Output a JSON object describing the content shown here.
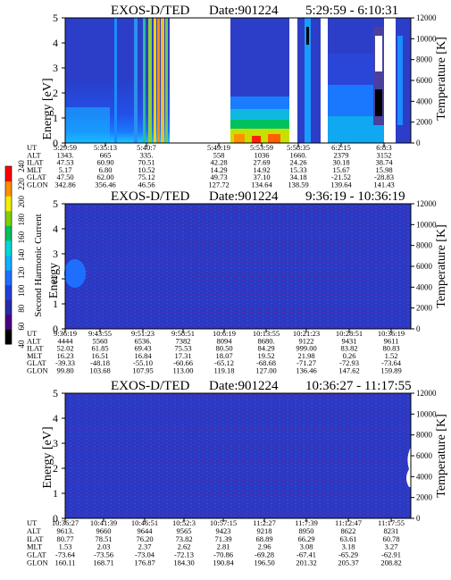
{
  "chart_data": [
    {
      "type": "heatmap",
      "title": "EXOS-D/TED",
      "date_label": "Date:901224",
      "time_range": "5:29:59 - 6:10:31",
      "ylabel": "Energy [eV]",
      "y2label": "Temperature [K]",
      "ylim": [
        0,
        5
      ],
      "y2lim": [
        0,
        12000
      ],
      "yticks": [
        "0",
        "1",
        "2",
        "3",
        "4",
        "5"
      ],
      "y2ticks": [
        "0",
        "2000",
        "4000",
        "6000",
        "8000",
        "10000",
        "12000"
      ],
      "row_labels": [
        "UT",
        "ALT",
        "ILAT",
        "MLT",
        "GLAT",
        "GLON"
      ],
      "columns": [
        [
          "5:29:59",
          "1343.",
          "47.53",
          "5.17",
          "47.50",
          "342.86"
        ],
        [
          "5:35:13",
          "665",
          "60.90",
          "6.80",
          "62.00",
          "356.46"
        ],
        [
          "5:40:7",
          "335.",
          "70.51",
          "10.52",
          "75.12",
          "46.56"
        ],
        [
          "5:49:19",
          "558",
          "42.28",
          "14.29",
          "49.73",
          "127.72"
        ],
        [
          "5:53:59",
          "1036",
          "27.69",
          "14.92",
          "37.10",
          "134.64"
        ],
        [
          "5:58:35",
          "1660.",
          "24.26",
          "15.33",
          "34.18",
          "138.59"
        ],
        [
          "6:2:15",
          "2379",
          "30.18",
          "15.67",
          "-21.52",
          "139.64"
        ],
        [
          "6:8:3",
          "3152",
          "38.74",
          "15.98",
          "-28.83",
          "141.43"
        ]
      ]
    },
    {
      "type": "heatmap",
      "title": "EXOS-D/TED",
      "date_label": "Date:901224",
      "time_range": "9:36:19 - 10:36:19",
      "ylabel": "Energy",
      "y2label": "Temperature [K]",
      "ylim": [
        0,
        5
      ],
      "y2lim": [
        0,
        12000
      ],
      "yticks": [
        "0",
        "1",
        "2",
        "3",
        "4",
        "5"
      ],
      "y2ticks": [
        "0",
        "2000",
        "4000",
        "6000",
        "8000",
        "10000",
        "12000"
      ],
      "row_labels": [
        "UT",
        "ALT",
        "ILAT",
        "MLT",
        "GLAT",
        "GLON"
      ],
      "columns": [
        [
          "9:36:19",
          "4444",
          "52.02",
          "16.23",
          "-39.33",
          "99.80"
        ],
        [
          "9:43:55",
          "5560",
          "61.85",
          "16.51",
          "-48.18",
          "103.68"
        ],
        [
          "9:51:23",
          "6536.",
          "69.43",
          "16.84",
          "-55.10",
          "107.95"
        ],
        [
          "9:58:51",
          "7382",
          "75.53",
          "17.31",
          "-60.66",
          "113.00"
        ],
        [
          "10:6:19",
          "8094",
          "80.50",
          "18.07",
          "-65.12",
          "119.18"
        ],
        [
          "10:13:55",
          "8680.",
          "84.29",
          "19.52",
          "-68.68",
          "127.00"
        ],
        [
          "10:21:23",
          "9122",
          "999.00",
          "21.98",
          "-71.27",
          "136.46"
        ],
        [
          "10:28:51",
          "9431",
          "83.82",
          "0.26",
          "-72.93",
          "147.62"
        ],
        [
          "10:36:19",
          "9611",
          "80.83",
          "1.52",
          "-73.64",
          "159.89"
        ]
      ]
    },
    {
      "type": "heatmap",
      "title": "EXOS-D/TED",
      "date_label": "Date:901224",
      "time_range": "10:36:27 - 11:17:55",
      "ylabel": "Energy [eV]",
      "y2label": "Temperature [K]",
      "ylim": [
        0,
        5
      ],
      "y2lim": [
        0,
        12000
      ],
      "yticks": [
        "0",
        "1",
        "2",
        "3",
        "4",
        "5"
      ],
      "y2ticks": [
        "0",
        "2000",
        "4000",
        "6000",
        "8000",
        "10000",
        "12000"
      ],
      "row_labels": [
        "UT",
        "ALT",
        "ILAT",
        "MLT",
        "GLAT",
        "GLON"
      ],
      "columns": [
        [
          "10:36:27",
          "9613.",
          "80.77",
          "1.53",
          "-73.64",
          "160.11"
        ],
        [
          "10:41:39",
          "9660",
          "78.51",
          "2.03",
          "-73.56",
          "168.71"
        ],
        [
          "10:46:51",
          "9644",
          "76.20",
          "2.37",
          "-73.04",
          "176.87"
        ],
        [
          "10:52:3",
          "9565",
          "73.82",
          "2.62",
          "-72.13",
          "184.30"
        ],
        [
          "10:57:15",
          "9423",
          "71.39",
          "2.81",
          "-70.86",
          "190.84"
        ],
        [
          "11:2:27",
          "9218",
          "68.89",
          "2.96",
          "-69.28",
          "196.50"
        ],
        [
          "11:7:39",
          "8950",
          "66.29",
          "3.08",
          "-67.41",
          "201.32"
        ],
        [
          "11:12:47",
          "8622",
          "63.61",
          "3.18",
          "-65.29",
          "205.37"
        ],
        [
          "11:17:55",
          "8231",
          "60.78",
          "3.27",
          "-62.91",
          "208.82"
        ]
      ]
    }
  ],
  "colorbar": {
    "label": "Second Harmonic Current",
    "ticks": [
      "40",
      "60",
      "80",
      "100",
      "120",
      "140",
      "160",
      "180",
      "200",
      "220",
      "240"
    ],
    "colors": [
      "#000000",
      "#4b0082",
      "#2a2aa8",
      "#2040d8",
      "#1f6fff",
      "#10b0ff",
      "#00d8d8",
      "#00c060",
      "#7fd000",
      "#f0f000",
      "#ff9000",
      "#ff0000"
    ]
  }
}
